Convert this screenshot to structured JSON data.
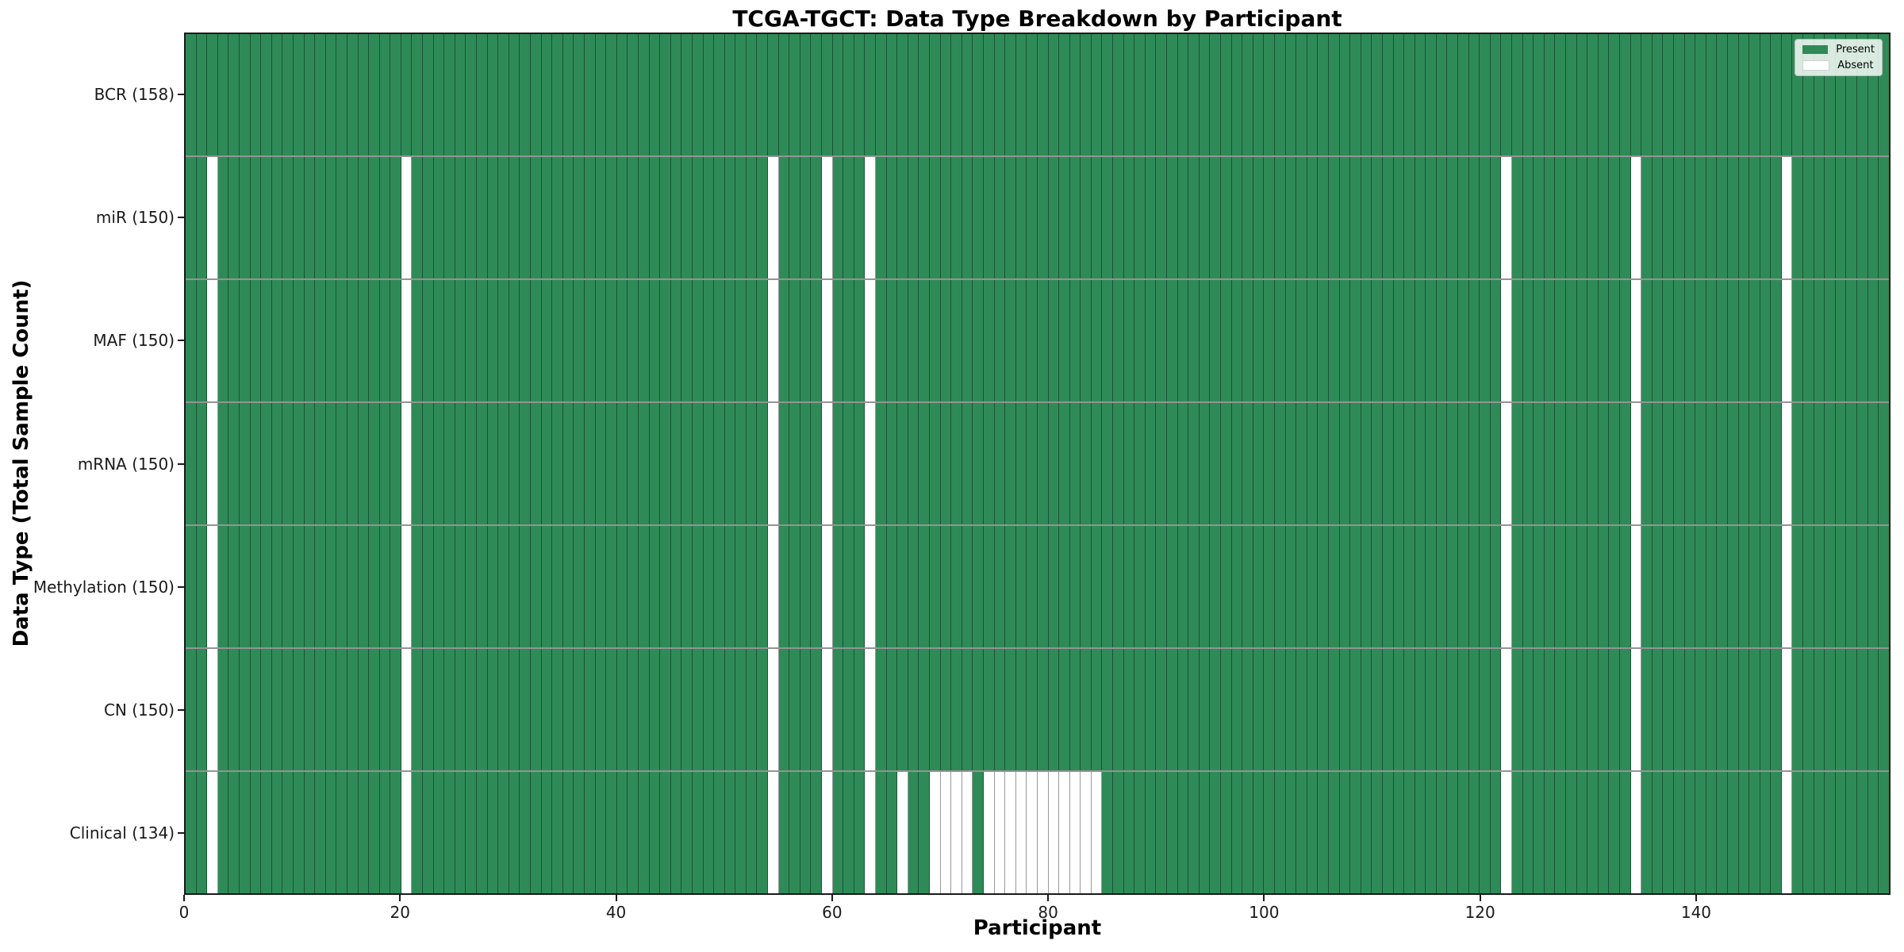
{
  "chart_data": {
    "type": "heatmap",
    "title": "TCGA-TGCT: Data Type Breakdown by Participant",
    "xlabel": "Participant",
    "ylabel": "Data Type (Total Sample Count)",
    "n_participants": 158,
    "x_ticks": [
      0,
      20,
      40,
      60,
      80,
      100,
      120,
      140
    ],
    "x_range": [
      0,
      158
    ],
    "grid": "cell-edges",
    "legend_position": "upper-right",
    "legend": [
      {
        "label": "Present",
        "color": "#2e8b57"
      },
      {
        "label": "Absent",
        "color": "#ffffff"
      }
    ],
    "colors": {
      "present": "#2e8b57",
      "absent": "#ffffff",
      "cell_edge": "rgba(0,0,0,0.40)",
      "spine": "#1a1a1a"
    },
    "rows": [
      {
        "name": "bcr",
        "label": "BCR (158)",
        "count": 158,
        "absent_participants": []
      },
      {
        "name": "mir",
        "label": "miR (150)",
        "count": 150,
        "absent_participants": [
          2,
          20,
          54,
          59,
          63,
          122,
          134,
          148
        ]
      },
      {
        "name": "maf",
        "label": "MAF (150)",
        "count": 150,
        "absent_participants": [
          2,
          20,
          54,
          59,
          63,
          122,
          134,
          148
        ]
      },
      {
        "name": "mrna",
        "label": "mRNA (150)",
        "count": 150,
        "absent_participants": [
          2,
          20,
          54,
          59,
          63,
          122,
          134,
          148
        ]
      },
      {
        "name": "methylation",
        "label": "Methylation (150)",
        "count": 150,
        "absent_participants": [
          2,
          20,
          54,
          59,
          63,
          122,
          134,
          148
        ]
      },
      {
        "name": "cn",
        "label": "CN (150)",
        "count": 150,
        "absent_participants": [
          2,
          20,
          54,
          59,
          63,
          122,
          134,
          148
        ]
      },
      {
        "name": "clinical",
        "label": "Clinical (134)",
        "count": 134,
        "absent_participants": [
          2,
          20,
          54,
          59,
          63,
          66,
          69,
          70,
          71,
          72,
          74,
          75,
          76,
          77,
          78,
          79,
          80,
          81,
          82,
          83,
          84,
          122,
          134,
          148
        ]
      }
    ]
  }
}
